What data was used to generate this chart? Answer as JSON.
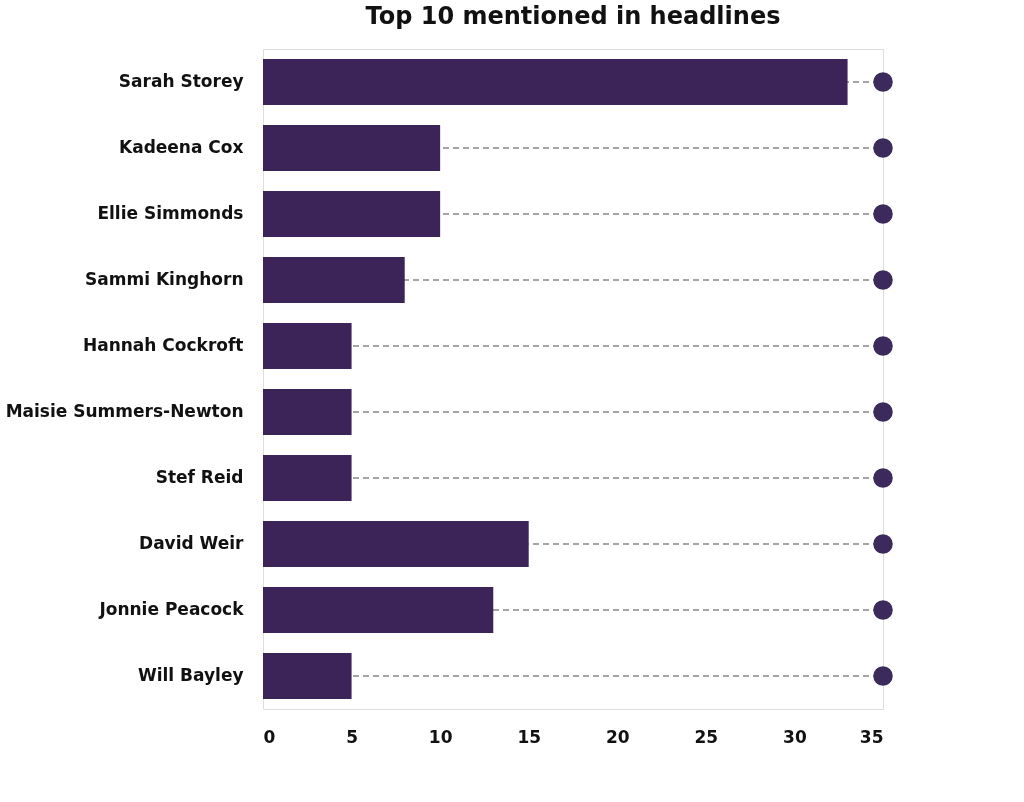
{
  "chart_data": {
    "type": "bar",
    "orientation": "horizontal",
    "title": "Top 10 mentioned in headlines",
    "categories": [
      "Sarah Storey",
      "Kadeena Cox",
      "Ellie Simmonds",
      "Sammi Kinghorn",
      "Hannah Cockroft",
      "Maisie Summers-Newton",
      "Stef Reid",
      "David Weir",
      "Jonnie Peacock",
      "Will Bayley"
    ],
    "series": [
      {
        "type": "lollipop",
        "color": "#3d2a5c",
        "line_style": "dashed",
        "marker": "circle",
        "values": [
          35,
          35,
          35,
          35,
          35,
          35,
          35,
          35,
          35,
          35
        ]
      },
      {
        "color": "#3d2458",
        "values": [
          33,
          10,
          10,
          8,
          5,
          5,
          5,
          15,
          13,
          5
        ]
      }
    ],
    "xlim": [
      0,
      35
    ],
    "xticks": [
      0,
      5,
      10,
      15,
      20,
      25,
      30,
      35
    ],
    "grid": false
  }
}
